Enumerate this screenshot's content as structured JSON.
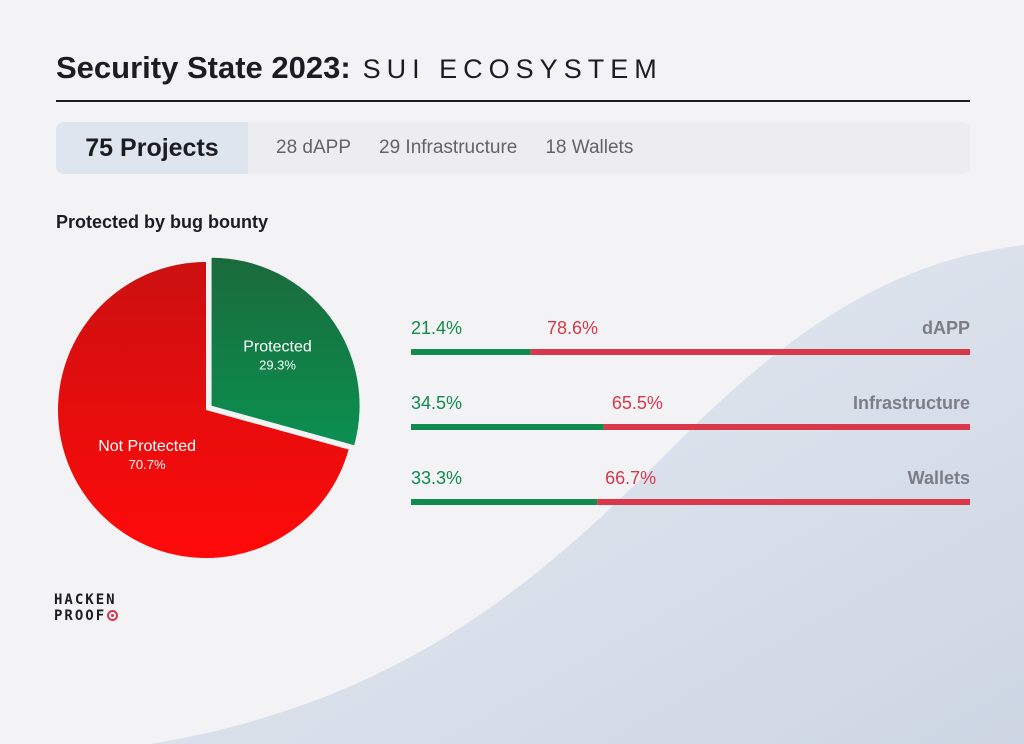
{
  "header": {
    "title": "Security State 2023",
    "colon": ":",
    "subtitle": "SUI ECOSYSTEM"
  },
  "summary": {
    "total": "75 Projects",
    "items": [
      "28 dAPP",
      "29 Infrastructure",
      "18 Wallets"
    ]
  },
  "section_title": "Protected by bug bounty",
  "logo": {
    "line1": "HACKEN",
    "line2": "PROOF"
  },
  "colors": {
    "protected_green": "#118a4e",
    "not_protected_red": "#e5112b",
    "bar_red": "#d8384a",
    "label_gray": "#7d7d86"
  },
  "chart_data": [
    {
      "type": "pie",
      "slices": [
        {
          "label": "Protected",
          "value": 29.3,
          "value_label": "29.3%"
        },
        {
          "label": "Not Protected",
          "value": 70.7,
          "value_label": "70.7%"
        }
      ]
    },
    {
      "type": "bar",
      "orientation": "horizontal-stacked",
      "categories": [
        "dAPP",
        "Infrastructure",
        "Wallets"
      ],
      "series": [
        {
          "values": [
            21.4,
            34.5,
            33.3
          ],
          "labels": [
            "21.4%",
            "34.5%",
            "33.3%"
          ]
        },
        {
          "values": [
            78.6,
            65.5,
            66.7
          ],
          "labels": [
            "78.6%",
            "65.5%",
            "66.7%"
          ]
        }
      ]
    }
  ]
}
